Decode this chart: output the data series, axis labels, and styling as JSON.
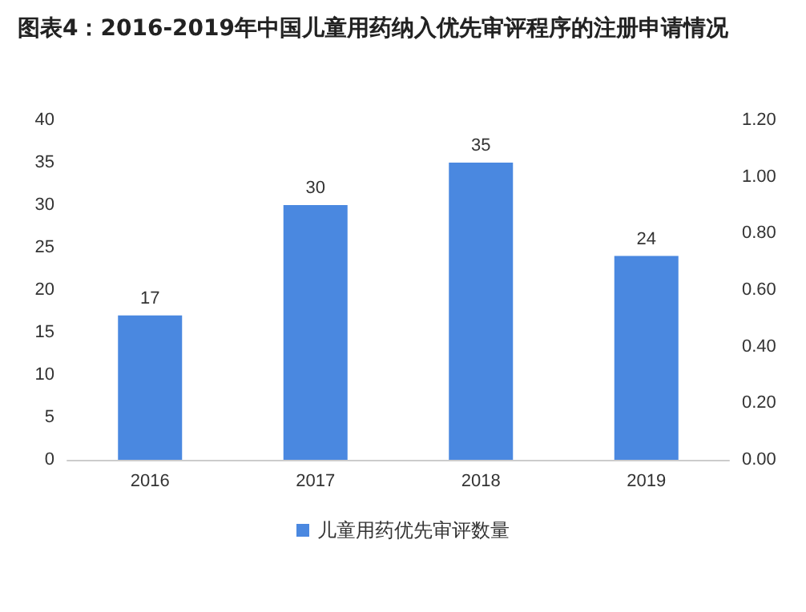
{
  "chart_data": {
    "type": "bar",
    "title": "图表4：2016-2019年中国儿童用药纳入优先审评程序的注册申请情况",
    "categories": [
      "2016",
      "2017",
      "2018",
      "2019"
    ],
    "series": [
      {
        "name": "儿童用药优先审评数量",
        "color": "#4a88e0",
        "values": [
          17,
          30,
          35,
          24
        ]
      }
    ],
    "ylim": [
      0,
      40
    ],
    "yticks": [
      0,
      5,
      10,
      15,
      20,
      25,
      30,
      35,
      40
    ],
    "y2lim": [
      0,
      1.2
    ],
    "y2ticks": [
      {
        "value": 0,
        "label": "0.00"
      },
      {
        "value": 0.2,
        "label": "0.20"
      },
      {
        "value": 0.4,
        "label": "0.40"
      },
      {
        "value": 0.6,
        "label": "0.60"
      },
      {
        "value": 0.8,
        "label": "0.80"
      },
      {
        "value": 1.0,
        "label": "1.00"
      },
      {
        "value": 1.2,
        "label": "1.20"
      }
    ],
    "data_labels": true,
    "grid": false,
    "legend": "bottom"
  }
}
